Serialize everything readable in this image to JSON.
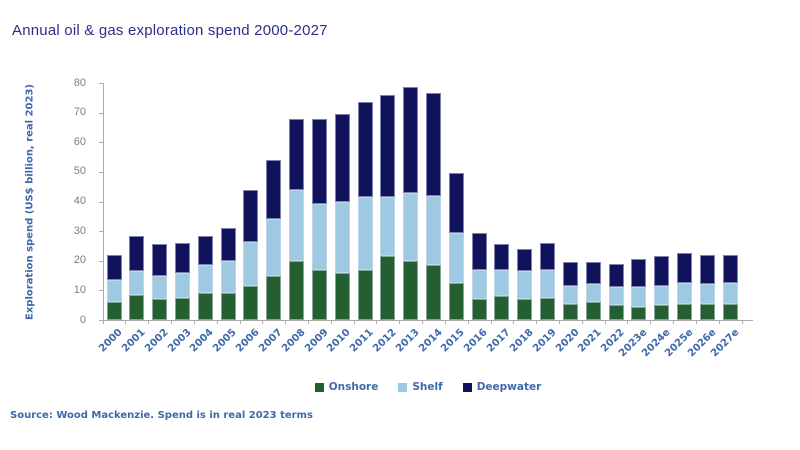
{
  "header": {
    "title": "Annual oil & gas exploration spend 2000-2027"
  },
  "footer": {
    "source": "Source: Wood Mackenzie. Spend is in real 2023 terms"
  },
  "colors": {
    "title_text": "#2C2F87",
    "axis_blue_text": "#3E69A9",
    "tick_gray_text": "#7F7F7F",
    "axis_line": "#ABABAB",
    "background": "#FFFFFF"
  },
  "chart_data": {
    "type": "bar",
    "stacked": true,
    "title": "Annual oil & gas exploration spend 2000-2027",
    "xlabel": "",
    "ylabel": "Exploration spend (US$ billion, real 2023)",
    "ylim": [
      0,
      80
    ],
    "yticks": [
      0,
      10,
      20,
      30,
      40,
      50,
      60,
      70,
      80
    ],
    "grid": false,
    "legend_position": "bottom-center",
    "categories": [
      "2000",
      "2001",
      "2002",
      "2003",
      "2004",
      "2005",
      "2006",
      "2007",
      "2008",
      "2009",
      "2010",
      "2011",
      "2012",
      "2013",
      "2014",
      "2015",
      "2016",
      "2017",
      "2018",
      "2019",
      "2020",
      "2021",
      "2022",
      "2023e",
      "2024e",
      "2025e",
      "2026e",
      "2027e"
    ],
    "series": [
      {
        "name": "Onshore",
        "color": "#235F31",
        "values": [
          6,
          8.5,
          7,
          7.5,
          9,
          9,
          11.5,
          15,
          20,
          17,
          16,
          17,
          21.5,
          20,
          18.5,
          12.5,
          7,
          8,
          7,
          7.5,
          5.5,
          6,
          5,
          4.5,
          5,
          5.5,
          5.5,
          5.5
        ]
      },
      {
        "name": "Shelf",
        "color": "#9DC9E2",
        "values": [
          7.5,
          8,
          8,
          8.5,
          9.5,
          11,
          15,
          19,
          24,
          22,
          24,
          24.5,
          20,
          23,
          23.5,
          17,
          10,
          9,
          9.5,
          9.5,
          6,
          6,
          6,
          6.5,
          6.5,
          7,
          6.5,
          7
        ]
      },
      {
        "name": "Deepwater",
        "color": "#11125C",
        "values": [
          8.5,
          12,
          10.5,
          10,
          10,
          11,
          17.5,
          20,
          24,
          29,
          29.5,
          32,
          34.5,
          35.5,
          34.5,
          20,
          12.5,
          8.5,
          7.5,
          9,
          8,
          7.5,
          8,
          9.5,
          10,
          10,
          10,
          9.5
        ]
      }
    ],
    "totals": [
      22,
      28.5,
      25.5,
      26,
      28.5,
      31,
      44,
      54,
      68,
      68,
      69.5,
      73.5,
      76,
      78.5,
      76.5,
      49.5,
      29.5,
      25.5,
      24,
      26,
      19.5,
      19.5,
      19,
      20.5,
      21.5,
      22.5,
      22,
      22
    ]
  }
}
